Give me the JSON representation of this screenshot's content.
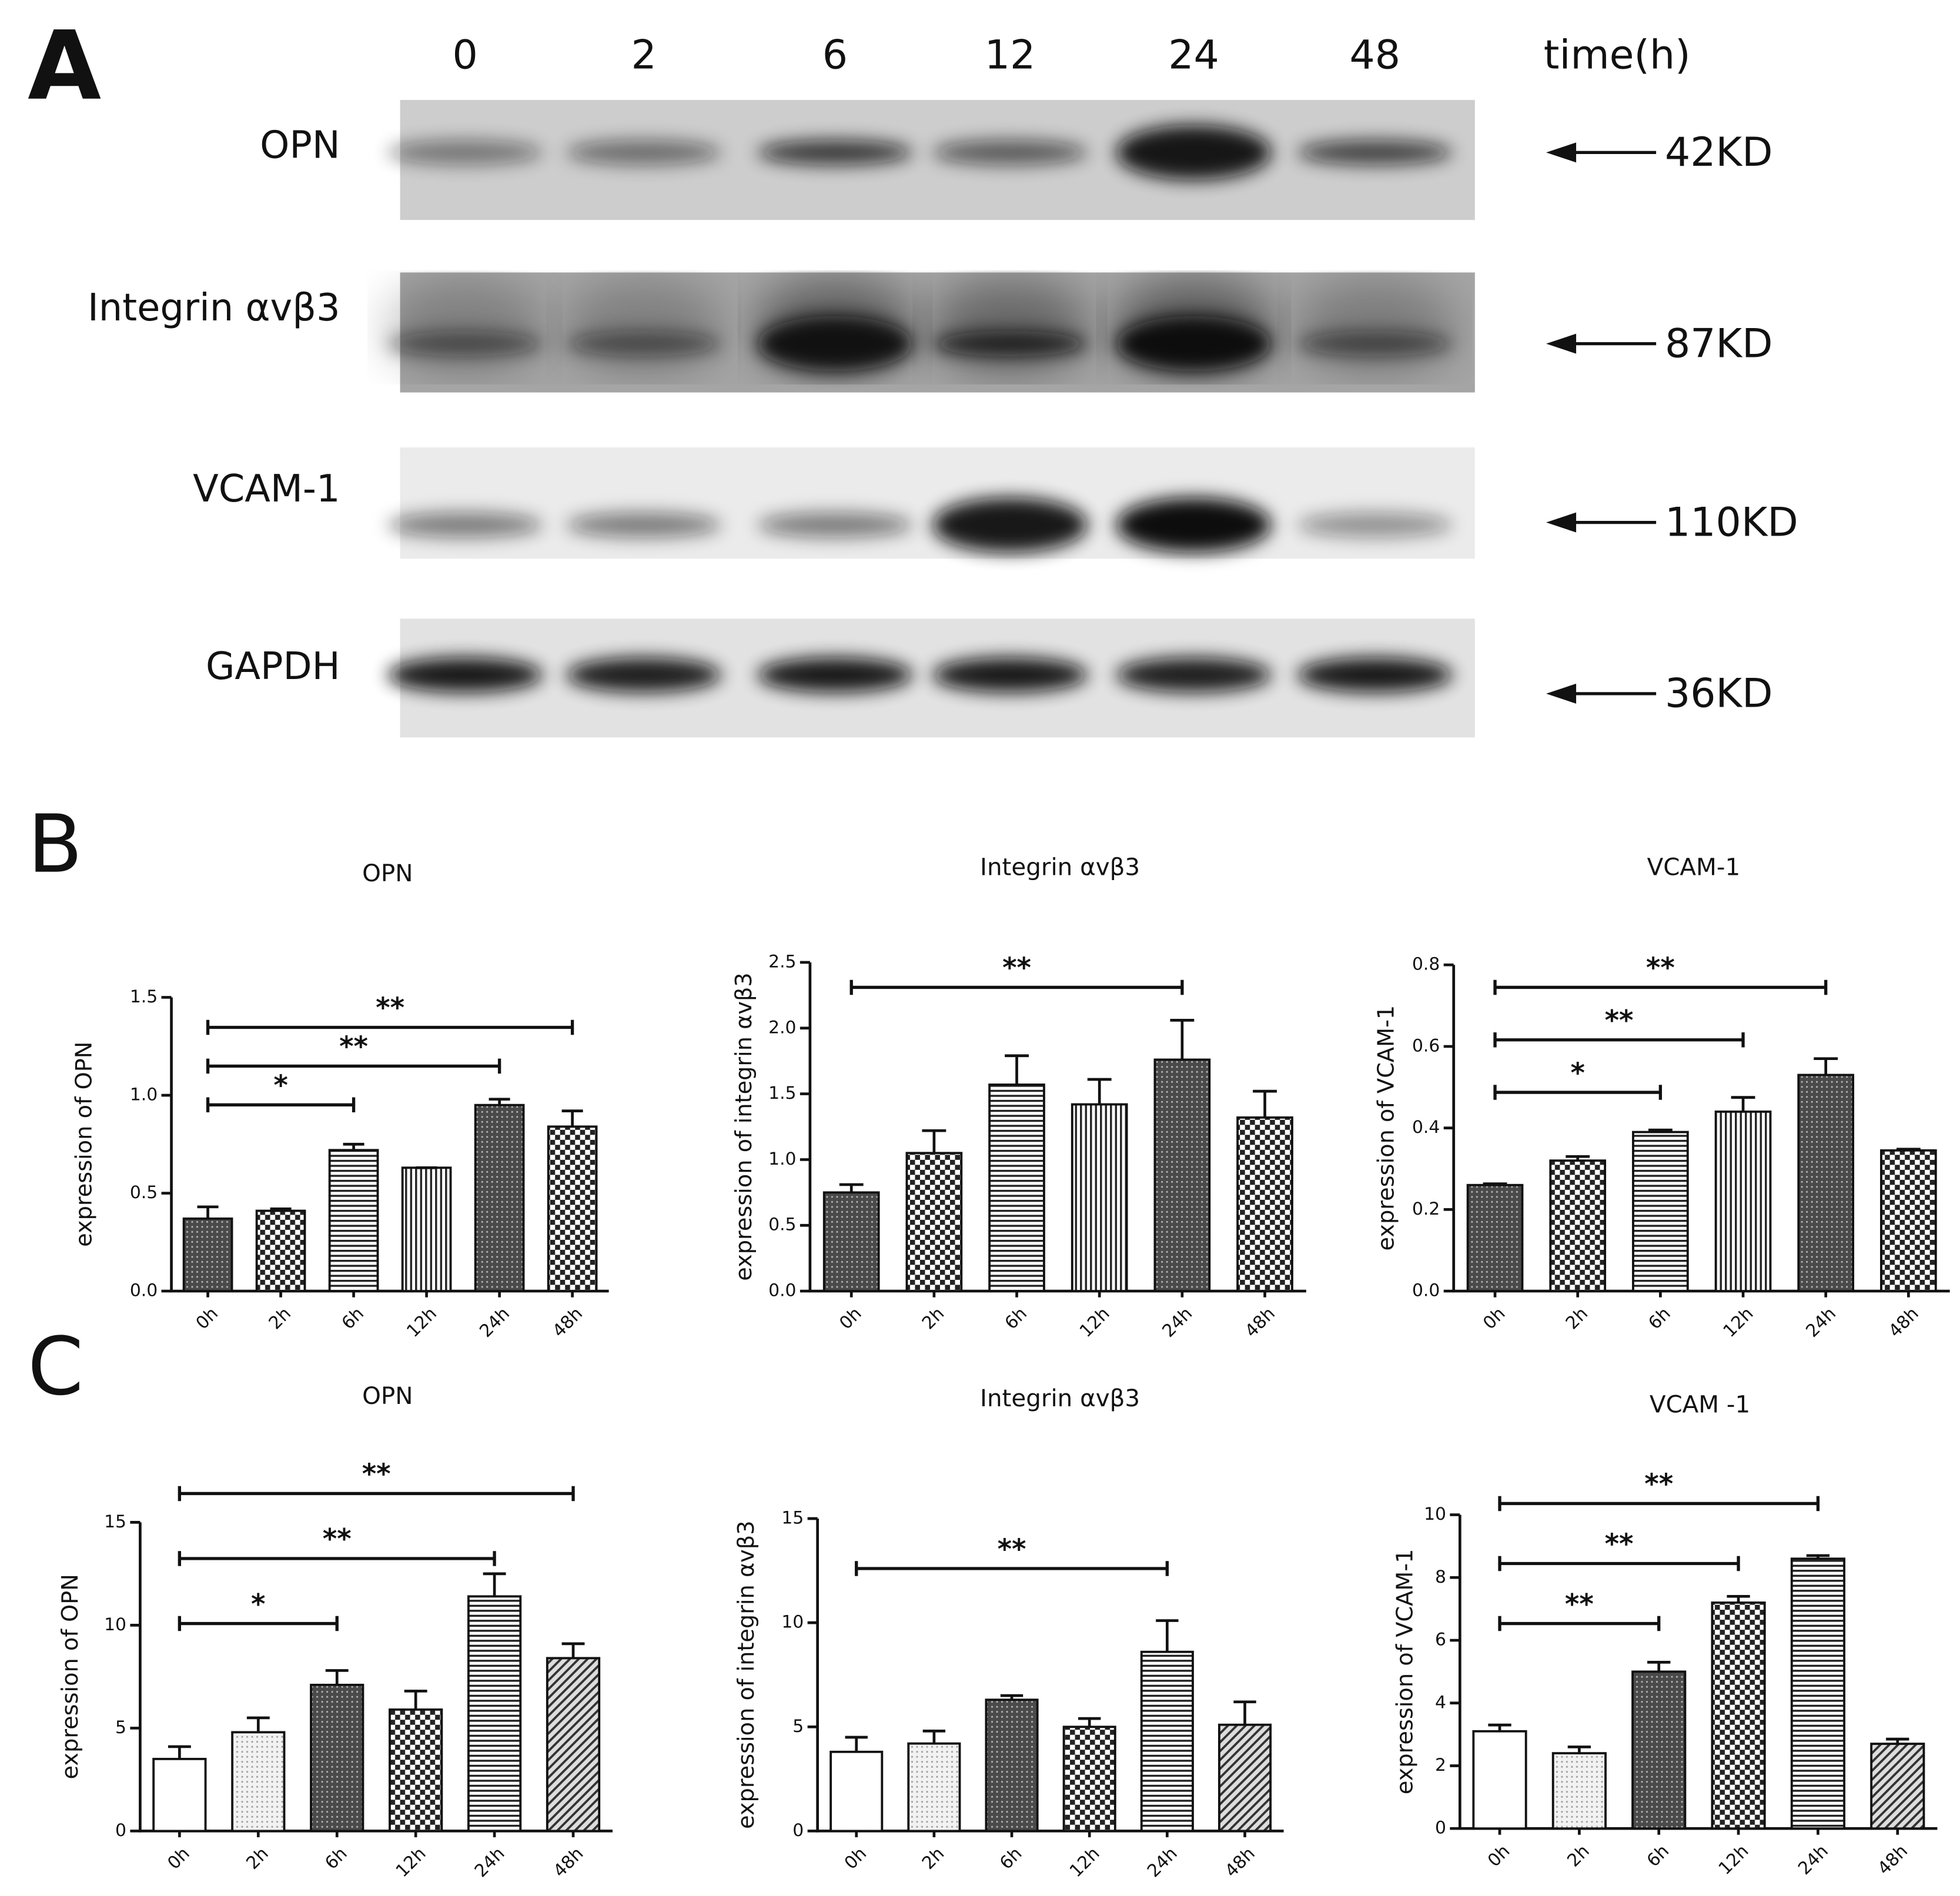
{
  "panel_labels": [
    "A",
    "B",
    "C"
  ],
  "blot": {
    "lanes": [
      "0",
      "2",
      "6",
      "12",
      "24",
      "48"
    ],
    "time_label": "time(h)",
    "rows": [
      {
        "protein": "OPN",
        "size": "42KD"
      },
      {
        "protein": "Integrin αvβ3",
        "size": "87KD"
      },
      {
        "protein": "VCAM-1",
        "size": "110KD"
      },
      {
        "protein": "GAPDH",
        "size": "36KD"
      }
    ]
  },
  "chart_data": [
    {
      "type": "bar",
      "title": "OPN",
      "y_label": "expression of OPN",
      "categories": [
        "0h",
        "2h",
        "6h",
        "12h",
        "24h",
        "48h"
      ],
      "values": [
        0.37,
        0.41,
        0.72,
        0.63,
        0.95,
        0.84
      ],
      "errors": [
        0.06,
        0.01,
        0.03,
        0,
        0.03,
        0.08
      ],
      "patterns": [
        "dark-dots",
        "checker",
        "hlines",
        "vlines",
        "dark-dots",
        "checker"
      ],
      "ylim": [
        0,
        1.5
      ],
      "yticks": [
        {
          "value": 0,
          "label": "0.0"
        },
        0.5,
        {
          "value": 1,
          "label": "1.0"
        },
        1.5
      ],
      "brackets": [
        {
          "from": "0h",
          "to": "6h",
          "label": "*"
        },
        {
          "from": "0h",
          "to": "24h",
          "label": "**"
        },
        {
          "from": "0h",
          "to": "48h",
          "label": "**"
        }
      ]
    },
    {
      "type": "bar",
      "title": "Integrin αvβ3",
      "y_label": "expression of integrin αvβ3",
      "categories": [
        "0h",
        "2h",
        "6h",
        "12h",
        "24h",
        "48h"
      ],
      "values": [
        0.75,
        1.05,
        1.57,
        1.42,
        1.76,
        1.32
      ],
      "errors": [
        0.06,
        0.17,
        0.22,
        0.19,
        0.3,
        0.2
      ],
      "patterns": [
        "dark-dots",
        "checker",
        "hlines",
        "vlines",
        "dark-dots",
        "checker"
      ],
      "ylim": [
        0,
        2.5
      ],
      "yticks": [
        {
          "value": 0,
          "label": "0.0"
        },
        0.5,
        {
          "value": 1,
          "label": "1.0"
        },
        1.5,
        {
          "value": 2,
          "label": "2.0"
        },
        2.5
      ],
      "brackets": [
        {
          "from": "0h",
          "to": "24h",
          "label": "**"
        }
      ]
    },
    {
      "type": "bar",
      "title": "VCAM-1",
      "y_label": "expression of VCAM-1",
      "categories": [
        "0h",
        "2h",
        "6h",
        "12h",
        "24h",
        "48h"
      ],
      "values": [
        0.26,
        0.32,
        0.39,
        0.44,
        0.53,
        0.345
      ],
      "errors": [
        0.003,
        0.01,
        0.005,
        0.035,
        0.04,
        0.003
      ],
      "patterns": [
        "dark-dots",
        "checker",
        "hlines",
        "vlines",
        "dark-dots",
        "checker"
      ],
      "ylim": [
        0,
        0.8
      ],
      "yticks": [
        {
          "value": 0,
          "label": "0.0"
        },
        0.2,
        0.4,
        0.6,
        0.8
      ],
      "brackets": [
        {
          "from": "0h",
          "to": "6h",
          "label": "*"
        },
        {
          "from": "0h",
          "to": "12h",
          "label": "**"
        },
        {
          "from": "0h",
          "to": "24h",
          "label": "**"
        }
      ]
    },
    {
      "type": "bar",
      "title": "OPN",
      "y_label": "expression of OPN",
      "categories": [
        "0h",
        "2h",
        "6h",
        "12h",
        "24h",
        "48h"
      ],
      "values": [
        3.5,
        4.8,
        7.1,
        5.9,
        11.4,
        8.4
      ],
      "errors": [
        0.6,
        0.7,
        0.7,
        0.9,
        1.1,
        0.7
      ],
      "patterns": [
        "white",
        "light-dots",
        "dark-dots",
        "checker",
        "hlines",
        "diagonal"
      ],
      "ylim": [
        0,
        15
      ],
      "yticks": [
        0,
        5,
        10,
        15
      ],
      "brackets": [
        {
          "from": "0h",
          "to": "6h",
          "label": "*"
        },
        {
          "from": "0h",
          "to": "24h",
          "label": "**"
        },
        {
          "from": "0h",
          "to": "48h",
          "label": "**"
        }
      ]
    },
    {
      "type": "bar",
      "title": "Integrin αvβ3",
      "y_label": "expression of integrin αvβ3",
      "categories": [
        "0h",
        "2h",
        "6h",
        "12h",
        "24h",
        "48h"
      ],
      "values": [
        3.8,
        4.2,
        6.3,
        5.0,
        8.6,
        5.1
      ],
      "errors": [
        0.7,
        0.6,
        0.2,
        0.4,
        1.5,
        1.1
      ],
      "patterns": [
        "white",
        "light-dots",
        "dark-dots",
        "checker",
        "hlines",
        "diagonal"
      ],
      "ylim": [
        0,
        15
      ],
      "yticks": [
        0,
        5,
        10,
        15
      ],
      "brackets": [
        {
          "from": "0h",
          "to": "24h",
          "label": "**"
        }
      ]
    },
    {
      "type": "bar",
      "title": "VCAM -1",
      "y_label": "expression of VCAM-1",
      "categories": [
        "0h",
        "2h",
        "6h",
        "12h",
        "24h",
        "48h"
      ],
      "values": [
        3.1,
        2.4,
        5.0,
        7.2,
        8.6,
        2.7
      ],
      "errors": [
        0.2,
        0.2,
        0.3,
        0.2,
        0.1,
        0.15
      ],
      "patterns": [
        "white",
        "light-dots",
        "dark-dots",
        "checker",
        "hlines",
        "diagonal"
      ],
      "ylim": [
        0,
        10
      ],
      "yticks": [
        0,
        2,
        4,
        6,
        8,
        10
      ],
      "brackets": [
        {
          "from": "0h",
          "to": "6h",
          "label": "**"
        },
        {
          "from": "0h",
          "to": "12h",
          "label": "**"
        },
        {
          "from": "0h",
          "to": "24h",
          "label": "**"
        }
      ]
    }
  ]
}
